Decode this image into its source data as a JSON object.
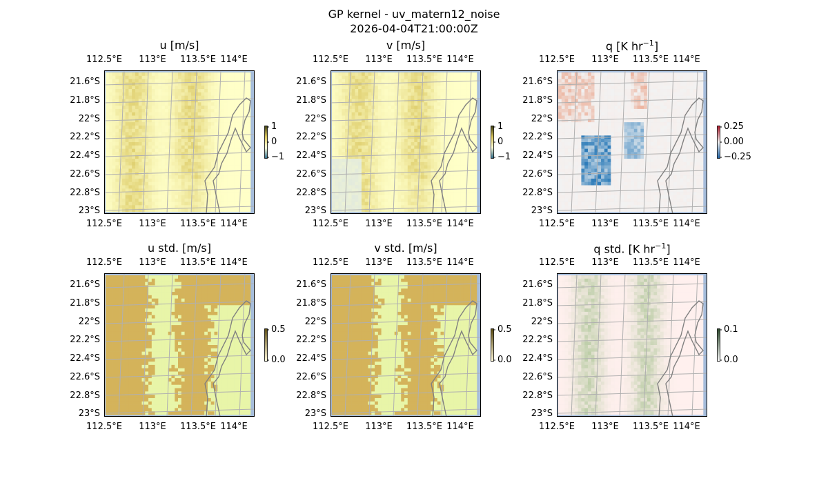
{
  "figure": {
    "title": "GP kernel - uv_matern12_noise",
    "timestamp": "2026-04-04T21:00:00Z"
  },
  "axes": {
    "lon_labels": [
      "112.5°E",
      "113°E",
      "113.5°E",
      "114°E"
    ],
    "lat_labels": [
      "21.6°S",
      "21.8°S",
      "22°S",
      "22.2°S",
      "22.4°S",
      "22.6°S",
      "22.8°S",
      "23°S"
    ]
  },
  "panels": [
    {
      "id": "u",
      "title": "u [m/s]",
      "colormap": "yellow-olive",
      "colorbar_ticks": [
        "1",
        "0",
        "−1"
      ]
    },
    {
      "id": "v",
      "title": "v [m/s]",
      "colormap": "yellow-olive",
      "colorbar_ticks": [
        "1",
        "0",
        "−1"
      ]
    },
    {
      "id": "q",
      "title": "q [K hr",
      "title_sup": "−1",
      "title_end": "]",
      "colormap": "red-blue",
      "colorbar_ticks": [
        "0.25",
        "0.00",
        "−0.25"
      ]
    },
    {
      "id": "u_std",
      "title": "u std. [m/s]",
      "colormap": "olive-lime",
      "colorbar_ticks": [
        "0.5",
        "0.0"
      ]
    },
    {
      "id": "v_std",
      "title": "v std. [m/s]",
      "colormap": "olive-lime",
      "colorbar_ticks": [
        "0.5",
        "0.0"
      ]
    },
    {
      "id": "q_std",
      "title": "q std. [K hr",
      "title_sup": "−1",
      "title_end": "]",
      "colormap": "green-pink",
      "colorbar_ticks": [
        "0.1",
        "0.0"
      ]
    }
  ],
  "colors": {
    "ocean_edge": "#a6bddb",
    "grid": "#b0b0b0",
    "coastline": "#808080",
    "u_base": "#ffffc8",
    "u_dark": "#d8c45a",
    "std_high": "#d4b35a",
    "std_low": "#e8f5a8",
    "q_pos": "#e8805a",
    "q_neg": "#2a7ab8",
    "q_base": "#f2f2f2",
    "qstd_base": "#fff0ee",
    "qstd_green": "#b5caa0"
  }
}
